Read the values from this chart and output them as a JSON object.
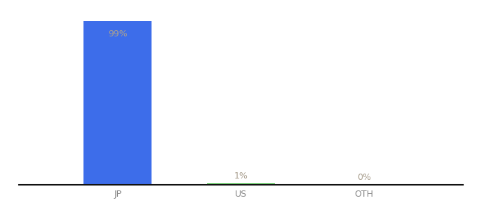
{
  "categories": [
    "JP",
    "US",
    "OTH"
  ],
  "values": [
    99,
    1,
    0
  ],
  "labels": [
    "99%",
    "1%",
    "0%"
  ],
  "bar_colors": [
    "#3d6dea",
    "#33bb33",
    "#3d6dea"
  ],
  "background_color": "#ffffff",
  "ylim": [
    0,
    108
  ],
  "bar_width": 0.55,
  "label_color_jp": "#aaa090",
  "label_color_small": "#aaa090",
  "tick_color": "#888888",
  "axis_line_color": "#111111"
}
